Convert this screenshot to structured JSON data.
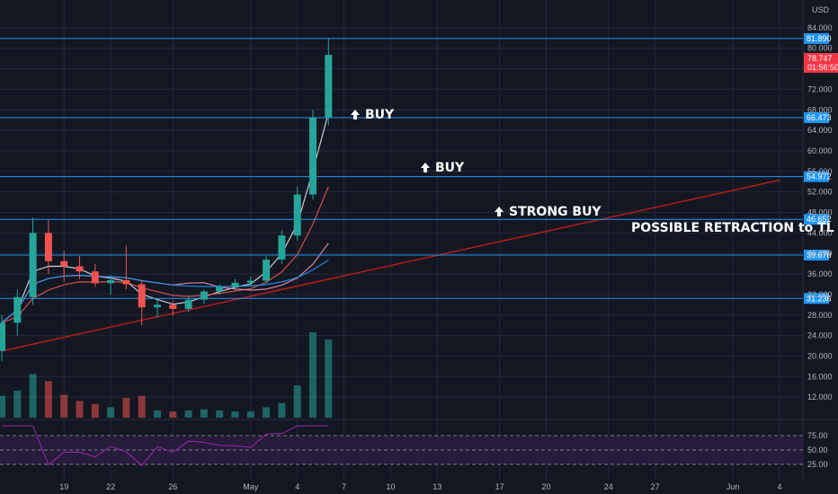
{
  "currency": "USD",
  "price_axis_labels": [
    "84.000",
    "80.000",
    "76.000",
    "72.000",
    "68.000",
    "64.000",
    "60.000",
    "56.000",
    "52.000",
    "48.000",
    "44.000",
    "40.000",
    "36.000",
    "32.000",
    "28.000",
    "24.000",
    "20.000",
    "16.000",
    "12.000"
  ],
  "date_axis_labels": [
    "19",
    "22",
    "26",
    "May",
    "4",
    "7",
    "10",
    "13",
    "17",
    "20",
    "24",
    "27",
    "Jun",
    "4"
  ],
  "rsi_axis_labels": [
    "75.00",
    "50.00",
    "25.00"
  ],
  "last_price": {
    "value": "78.747",
    "countdown": "01:56:50",
    "color": "#f23645"
  },
  "colors": {
    "up": "#26a69a",
    "down": "#ef5350",
    "level": "#2196f3",
    "trendline": "#b71c1c",
    "ema_fast": "#e0e3eb",
    "ema_mid": "#ef5350",
    "sma_slow": "#f48fb1",
    "sma_long": "#2196f3",
    "rsi": "#9c27b0"
  },
  "annotations": [
    {
      "text": "BUY",
      "arrow": "up"
    },
    {
      "text": "BUY",
      "arrow": "up"
    },
    {
      "text": "STRONG BUY",
      "arrow": "up"
    },
    {
      "text": "POSSIBLE RETRACTION to TL",
      "arrow": ""
    }
  ],
  "chart_data": {
    "type": "candlestick",
    "title": "",
    "xlabel": "",
    "ylabel": "USD",
    "ylim": [
      8,
      88
    ],
    "grid": true,
    "horizontal_levels": [
      81.89,
      66.473,
      54.972,
      46.652,
      39.678,
      31.236
    ],
    "trendline": {
      "from": {
        "date": "Apr 15",
        "price": 21.0
      },
      "to": {
        "date": "Jun 4",
        "price": 54.3
      }
    },
    "candles": [
      {
        "d": "Apr 15",
        "o": 21.0,
        "h": 28.0,
        "l": 19.0,
        "c": 26.5,
        "v": 2.1
      },
      {
        "d": "Apr 16",
        "o": 26.5,
        "h": 33.0,
        "l": 24.0,
        "c": 31.5,
        "v": 2.6
      },
      {
        "d": "Apr 17",
        "o": 31.5,
        "h": 47.0,
        "l": 30.0,
        "c": 44.0,
        "v": 4.2
      },
      {
        "d": "Apr 18",
        "o": 44.0,
        "h": 46.5,
        "l": 36.0,
        "c": 38.5,
        "v": 3.5
      },
      {
        "d": "Apr 19",
        "o": 38.5,
        "h": 40.5,
        "l": 34.5,
        "c": 37.5,
        "v": 2.2
      },
      {
        "d": "Apr 20",
        "o": 37.5,
        "h": 39.5,
        "l": 35.0,
        "c": 36.5,
        "v": 1.6
      },
      {
        "d": "Apr 21",
        "o": 36.5,
        "h": 38.0,
        "l": 33.5,
        "c": 34.2,
        "v": 1.3
      },
      {
        "d": "Apr 22",
        "o": 34.2,
        "h": 35.8,
        "l": 32.0,
        "c": 34.8,
        "v": 1.0
      },
      {
        "d": "Apr 23",
        "o": 34.8,
        "h": 41.5,
        "l": 33.0,
        "c": 34.0,
        "v": 1.9
      },
      {
        "d": "Apr 24",
        "o": 34.0,
        "h": 34.8,
        "l": 26.0,
        "c": 29.5,
        "v": 2.1
      },
      {
        "d": "Apr 25",
        "o": 29.5,
        "h": 31.0,
        "l": 27.5,
        "c": 30.0,
        "v": 0.7
      },
      {
        "d": "Apr 26",
        "o": 30.0,
        "h": 30.8,
        "l": 27.8,
        "c": 29.2,
        "v": 0.6
      },
      {
        "d": "Apr 27",
        "o": 29.2,
        "h": 31.5,
        "l": 28.6,
        "c": 31.0,
        "v": 0.7
      },
      {
        "d": "Apr 28",
        "o": 31.0,
        "h": 33.0,
        "l": 30.2,
        "c": 32.6,
        "v": 0.8
      },
      {
        "d": "Apr 29",
        "o": 32.6,
        "h": 34.0,
        "l": 32.0,
        "c": 33.5,
        "v": 0.7
      },
      {
        "d": "Apr 30",
        "o": 33.5,
        "h": 35.0,
        "l": 32.8,
        "c": 34.3,
        "v": 0.6
      },
      {
        "d": "May 1",
        "o": 34.3,
        "h": 35.5,
        "l": 33.6,
        "c": 34.7,
        "v": 0.6
      },
      {
        "d": "May 2",
        "o": 34.7,
        "h": 39.5,
        "l": 34.2,
        "c": 38.8,
        "v": 1.0
      },
      {
        "d": "May 3",
        "o": 38.8,
        "h": 44.5,
        "l": 38.0,
        "c": 43.5,
        "v": 1.4
      },
      {
        "d": "May 4",
        "o": 43.5,
        "h": 53.0,
        "l": 42.5,
        "c": 51.5,
        "v": 3.1
      },
      {
        "d": "May 5",
        "o": 51.5,
        "h": 68.0,
        "l": 50.5,
        "c": 66.5,
        "v": 8.2
      },
      {
        "d": "May 6",
        "o": 66.5,
        "h": 82.0,
        "l": 65.0,
        "c": 78.7,
        "v": 7.5
      }
    ],
    "volume_unit": "relative",
    "indicators": [
      "EMA",
      "EMA",
      "SMA",
      "SMA"
    ],
    "rsi_range": [
      0,
      100
    ],
    "rsi_band": [
      25,
      75
    ]
  }
}
